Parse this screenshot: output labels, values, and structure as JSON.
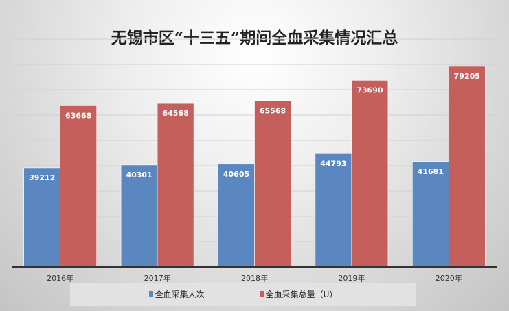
{
  "chart_data": {
    "type": "bar",
    "title": "无锡市区“十三五”期间全血采集情况汇总",
    "categories": [
      "2016年",
      "2017年",
      "2018年",
      "2019年",
      "2020年"
    ],
    "series": [
      {
        "name": "全血采集人次",
        "color": "#5b87c0",
        "values": [
          39212,
          40301,
          40605,
          44793,
          41681
        ]
      },
      {
        "name": "全血采集总量（U）",
        "color": "#c45f5c",
        "values": [
          63668,
          64568,
          65568,
          73690,
          79205
        ]
      }
    ],
    "ylim": [
      0,
      90000
    ],
    "ytick_step": 10000,
    "grid": true,
    "legend": "bottom",
    "xlabel": "",
    "ylabel": ""
  }
}
